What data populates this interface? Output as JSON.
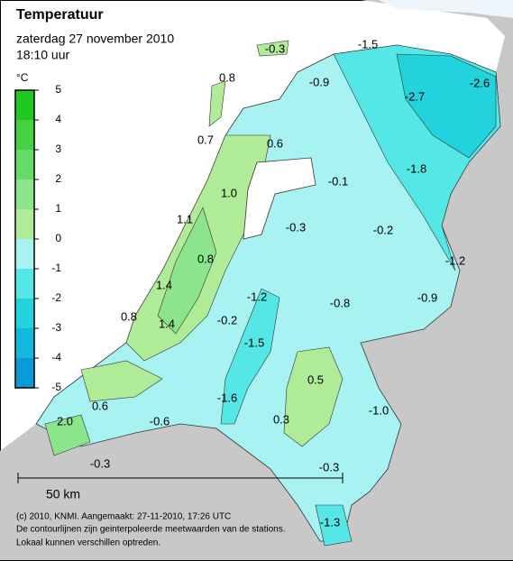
{
  "header": {
    "title": "Temperatuur",
    "date": "zaterdag 27 november 2010",
    "time": "18:10 uur"
  },
  "legend": {
    "unit": "°C",
    "ticks": [
      5,
      4,
      3,
      2,
      1,
      0,
      -1,
      -2,
      -3,
      -4,
      -5
    ],
    "colors": [
      "#22c822",
      "#44d244",
      "#66dc66",
      "#8ce48c",
      "#b0ec98",
      "#a8f2f2",
      "#55e6e6",
      "#22d2dc",
      "#14b8dc",
      "#0a9ad8"
    ]
  },
  "stations": [
    "-0.3",
    "-1.5",
    "-0.9",
    "-2.7",
    "-2.6",
    "0.8",
    "0.7",
    "0.6",
    "-1.8",
    "-0.1",
    "1.0",
    "1.1",
    "-0.3",
    "-0.2",
    "-1.2",
    "0.8",
    "1.4",
    "-1.2",
    "-0.8",
    "-0.9",
    "0.8",
    "1.4",
    "-0.2",
    "-1.5",
    "0.5",
    "-1.6",
    "0.6",
    "-1.0",
    "-0.6",
    "0.3",
    "2.0",
    "-0.3",
    "-0.3",
    "-1.3"
  ],
  "scale_bar": {
    "label": "50 km"
  },
  "credits": [
    "(c) 2010, KNMI. Aangemaakt: 27-11-2010, 17:26 UTC",
    "De contourlijnen zijn geinterpoleerde meetwaarden van de stations.",
    "Lokaal kunnen verschillen optreden."
  ]
}
